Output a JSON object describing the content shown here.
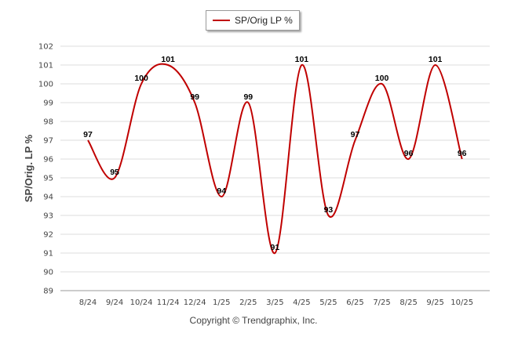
{
  "chart_data": {
    "type": "line",
    "title": "",
    "xlabel": "",
    "ylabel": "SP/Orig. LP %",
    "categories": [
      "8/24",
      "9/24",
      "10/24",
      "11/24",
      "12/24",
      "1/25",
      "2/25",
      "3/25",
      "4/25",
      "5/25",
      "6/25",
      "7/25",
      "8/25",
      "9/25",
      "10/25"
    ],
    "series": [
      {
        "name": "SP/Orig LP %",
        "color": "#c00000",
        "values": [
          97,
          95,
          100,
          101,
          99,
          94,
          99,
          91,
          101,
          93,
          97,
          100,
          96,
          101,
          96
        ]
      }
    ],
    "ylim": [
      89,
      102
    ],
    "yticks": [
      89,
      90,
      91,
      92,
      93,
      94,
      95,
      96,
      97,
      98,
      99,
      100,
      101,
      102
    ],
    "grid": true,
    "legend": "top-center",
    "smooth": true,
    "data_labels": true
  },
  "legend": {
    "label": "SP/Orig LP %"
  },
  "footer": {
    "copyright": "Copyright © Trendgraphix, Inc."
  }
}
